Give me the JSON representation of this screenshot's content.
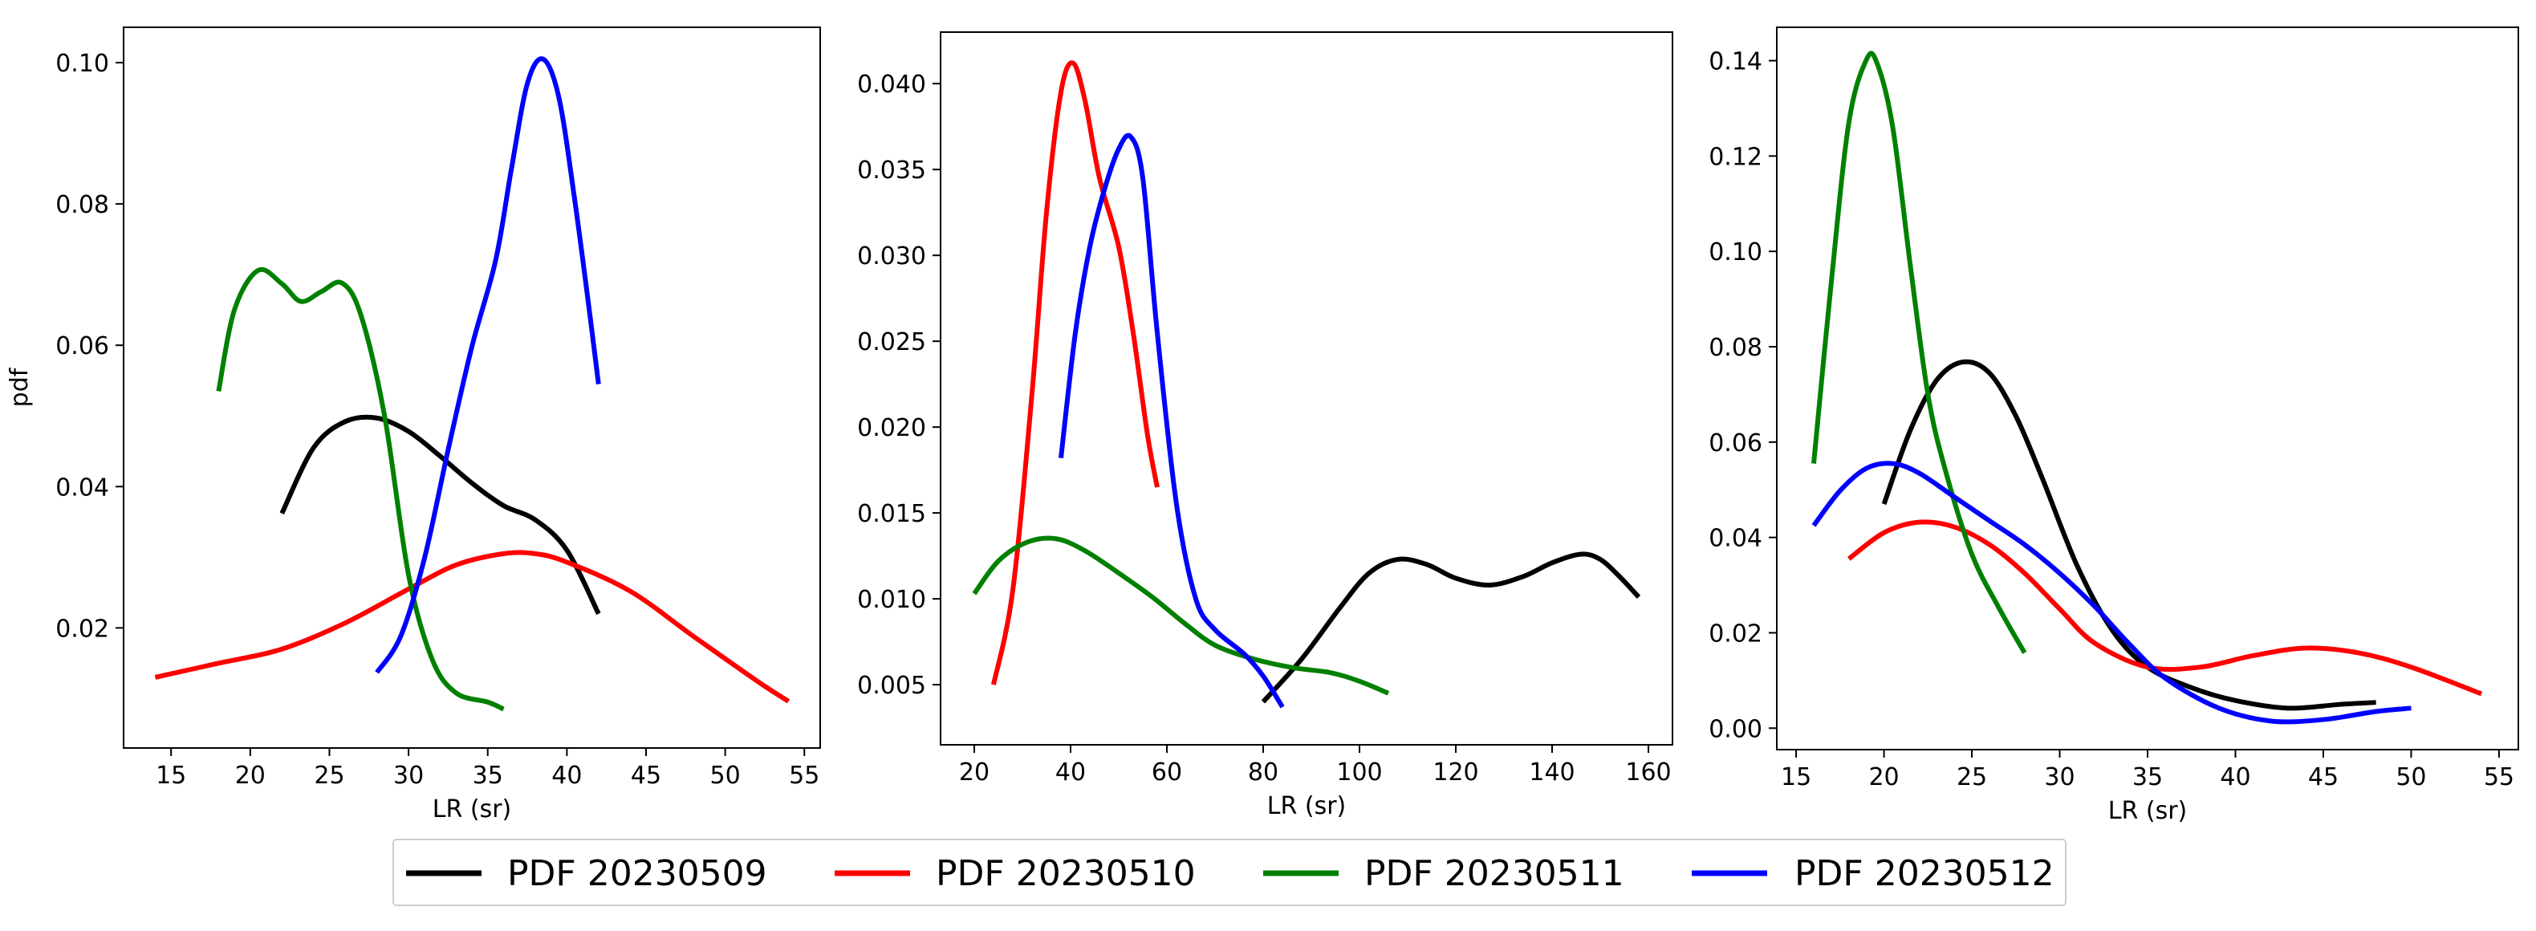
{
  "chart_data": [
    {
      "type": "line",
      "title": "",
      "xlabel": "LR (sr)",
      "ylabel": "pdf",
      "xlim": [
        12,
        56
      ],
      "ylim": [
        0.003,
        0.105
      ],
      "xticks": [
        15,
        20,
        25,
        30,
        35,
        40,
        45,
        50,
        55
      ],
      "yticks": [
        0.02,
        0.04,
        0.06,
        0.08,
        0.1
      ],
      "ytick_labels": [
        "0.02",
        "0.04",
        "0.06",
        "0.08",
        "0.10"
      ],
      "grid": false,
      "series": [
        {
          "name": "PDF 20230509",
          "color": "#000000",
          "x": [
            22,
            24,
            26,
            28,
            30,
            32,
            34,
            36,
            38,
            40,
            42
          ],
          "y": [
            0.0362,
            0.0455,
            0.0492,
            0.0497,
            0.0478,
            0.0443,
            0.0405,
            0.0373,
            0.0353,
            0.031,
            0.022
          ]
        },
        {
          "name": "PDF 20230510",
          "color": "#ff0000",
          "x": [
            14,
            18,
            22,
            26,
            30,
            33,
            36,
            38,
            40,
            44,
            48,
            52,
            54
          ],
          "y": [
            0.013,
            0.015,
            0.017,
            0.0207,
            0.0255,
            0.0289,
            0.0305,
            0.0305,
            0.0293,
            0.0252,
            0.0188,
            0.0125,
            0.0096
          ]
        },
        {
          "name": "PDF 20230511",
          "color": "#008000",
          "x": [
            18,
            19,
            20.5,
            22,
            23.2,
            24.5,
            25.8,
            27,
            28.5,
            30,
            31.5,
            33,
            35,
            36
          ],
          "y": [
            0.0535,
            0.065,
            0.0706,
            0.0687,
            0.0662,
            0.0676,
            0.0688,
            0.0642,
            0.0498,
            0.0275,
            0.0155,
            0.0108,
            0.0095,
            0.0085
          ]
        },
        {
          "name": "PDF 20230512",
          "color": "#0000ff",
          "x": [
            28,
            29.5,
            31,
            32.5,
            34,
            35.5,
            36.5,
            37.5,
            38.5,
            39.5,
            40.5,
            41.5,
            42
          ],
          "y": [
            0.0137,
            0.0188,
            0.0298,
            0.0452,
            0.0598,
            0.072,
            0.085,
            0.097,
            0.1005,
            0.095,
            0.0805,
            0.0635,
            0.0545
          ]
        }
      ]
    },
    {
      "type": "line",
      "title": "",
      "xlabel": "LR (sr)",
      "ylabel": "",
      "xlim": [
        13,
        165
      ],
      "ylim": [
        0.0015,
        0.043
      ],
      "xticks": [
        20,
        40,
        60,
        80,
        100,
        120,
        140,
        160
      ],
      "yticks": [
        0.005,
        0.01,
        0.015,
        0.02,
        0.025,
        0.03,
        0.035,
        0.04
      ],
      "ytick_labels": [
        "0.005",
        "0.010",
        "0.015",
        "0.020",
        "0.025",
        "0.030",
        "0.035",
        "0.040"
      ],
      "grid": false,
      "series": [
        {
          "name": "PDF 20230509",
          "color": "#000000",
          "x": [
            80,
            88,
            96,
            102,
            108,
            114,
            120,
            127,
            134,
            140,
            146,
            150,
            154,
            158
          ],
          "y": [
            0.004,
            0.0065,
            0.0095,
            0.0115,
            0.0123,
            0.012,
            0.0112,
            0.0108,
            0.0113,
            0.0121,
            0.0126,
            0.0123,
            0.0113,
            0.0101
          ]
        },
        {
          "name": "PDF 20230510",
          "color": "#ff0000",
          "x": [
            24,
            28,
            32,
            35,
            38,
            40.5,
            43,
            46,
            50,
            53,
            56,
            58
          ],
          "y": [
            0.005,
            0.0105,
            0.022,
            0.0325,
            0.0395,
            0.0412,
            0.039,
            0.0345,
            0.0305,
            0.0255,
            0.0195,
            0.0165
          ]
        },
        {
          "name": "PDF 20230511",
          "color": "#008000",
          "x": [
            20,
            25,
            31,
            37,
            43,
            50,
            57,
            64,
            70,
            78,
            86,
            94,
            100,
            106
          ],
          "y": [
            0.0103,
            0.0122,
            0.0133,
            0.0135,
            0.0128,
            0.0115,
            0.0101,
            0.0085,
            0.0073,
            0.0065,
            0.006,
            0.0057,
            0.0052,
            0.0045
          ]
        },
        {
          "name": "PDF 20230512",
          "color": "#0000ff",
          "x": [
            38,
            41,
            44,
            47,
            50,
            52.5,
            55,
            58,
            62,
            66,
            70,
            76,
            80,
            84
          ],
          "y": [
            0.0182,
            0.0255,
            0.0305,
            0.0338,
            0.0362,
            0.0369,
            0.0345,
            0.0255,
            0.0155,
            0.01,
            0.0082,
            0.0068,
            0.0055,
            0.0037
          ]
        }
      ]
    },
    {
      "type": "line",
      "title": "",
      "xlabel": "LR (sr)",
      "ylabel": "",
      "xlim": [
        13.9,
        56.1
      ],
      "ylim": [
        -0.0045,
        0.147
      ],
      "xticks": [
        15,
        20,
        25,
        30,
        35,
        40,
        45,
        50,
        55
      ],
      "yticks": [
        0.0,
        0.02,
        0.04,
        0.06,
        0.08,
        0.1,
        0.12,
        0.14
      ],
      "ytick_labels": [
        "0.00",
        "0.02",
        "0.04",
        "0.06",
        "0.08",
        "0.10",
        "0.12",
        "0.14"
      ],
      "grid": false,
      "series": [
        {
          "name": "PDF 20230509",
          "color": "#000000",
          "x": [
            20,
            21.5,
            23,
            24.5,
            26,
            27.5,
            29,
            31,
            33,
            35,
            37.5,
            40,
            43,
            46,
            48
          ],
          "y": [
            0.047,
            0.0625,
            0.073,
            0.0768,
            0.0745,
            0.0655,
            0.0525,
            0.034,
            0.0205,
            0.0128,
            0.0085,
            0.0058,
            0.0042,
            0.005,
            0.0054
          ]
        },
        {
          "name": "PDF 20230510",
          "color": "#ff0000",
          "x": [
            18,
            20,
            22,
            24,
            26,
            28,
            30,
            32,
            35,
            38,
            41,
            44,
            47,
            50,
            54
          ],
          "y": [
            0.0355,
            0.041,
            0.0432,
            0.0422,
            0.0385,
            0.0325,
            0.025,
            0.0178,
            0.0128,
            0.0128,
            0.0152,
            0.0168,
            0.0158,
            0.0128,
            0.0072
          ]
        },
        {
          "name": "PDF 20230511",
          "color": "#008000",
          "x": [
            16,
            17,
            18,
            19,
            19.6,
            20.5,
            21.5,
            22.5,
            23.5,
            25,
            26.5,
            28
          ],
          "y": [
            0.0555,
            0.0935,
            0.127,
            0.1402,
            0.1395,
            0.126,
            0.097,
            0.07,
            0.054,
            0.0365,
            0.0255,
            0.0158
          ]
        },
        {
          "name": "PDF 20230512",
          "color": "#0000ff",
          "x": [
            16,
            17.5,
            19,
            20.5,
            22,
            24,
            26,
            28,
            30,
            32,
            34,
            36,
            39,
            42,
            45,
            48,
            50
          ],
          "y": [
            0.0425,
            0.0498,
            0.0545,
            0.0555,
            0.0535,
            0.0485,
            0.0435,
            0.0385,
            0.0325,
            0.0255,
            0.0175,
            0.0105,
            0.0043,
            0.0015,
            0.0018,
            0.0035,
            0.0042
          ]
        }
      ]
    }
  ],
  "legend": {
    "placement": "bottom-center",
    "entries": [
      {
        "label": "PDF 20230509",
        "color": "#000000"
      },
      {
        "label": "PDF 20230510",
        "color": "#ff0000"
      },
      {
        "label": "PDF 20230511",
        "color": "#008000"
      },
      {
        "label": "PDF 20230512",
        "color": "#0000ff"
      }
    ]
  }
}
